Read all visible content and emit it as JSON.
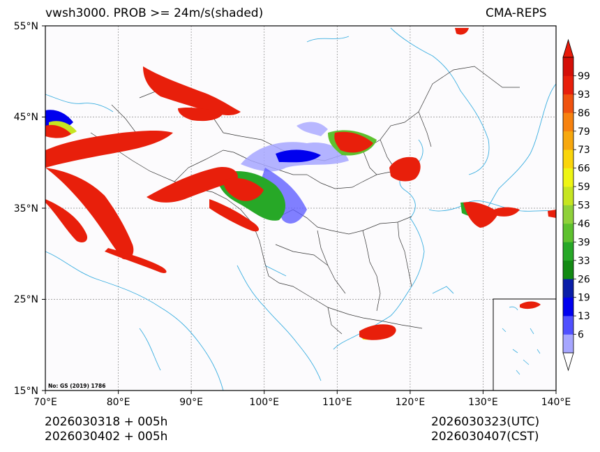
{
  "title": {
    "left": "vwsh3000. PROB >= 24m/s(shaded)",
    "right": "CMA-REPS"
  },
  "map": {
    "lat_labels": [
      "55°N",
      "45°N",
      "35°N",
      "25°N",
      "15°N"
    ],
    "lon_labels": [
      "70°E",
      "80°E",
      "90°E",
      "100°E",
      "110°E",
      "120°E",
      "130°E",
      "140°E"
    ],
    "source_note": "No: GS (2019) 1786",
    "extent": {
      "lon_min": 70,
      "lon_max": 140,
      "lat_min": 15,
      "lat_max": 55
    }
  },
  "colorbar": {
    "labels": [
      "6",
      "13",
      "19",
      "26",
      "33",
      "39",
      "46",
      "53",
      "59",
      "66",
      "73",
      "79",
      "86",
      "93",
      "99"
    ],
    "colors": [
      "#a6a6ff",
      "#5050ff",
      "#0000ee",
      "#0a1ea8",
      "#138a13",
      "#27a827",
      "#5ec12e",
      "#8fd13a",
      "#c6e521",
      "#eef514",
      "#fad50b",
      "#f7a80e",
      "#f7820f",
      "#f0520e",
      "#e81f0b",
      "#d40f08"
    ],
    "under_color": "#ffffff",
    "over_color": "#e81a0a"
  },
  "footer": {
    "left_line1": "2026030318  +  005h",
    "left_line2": "2026030402  +  005h",
    "right_line1": "2026030323(UTC)",
    "right_line2": "2026030407(CST)"
  }
}
